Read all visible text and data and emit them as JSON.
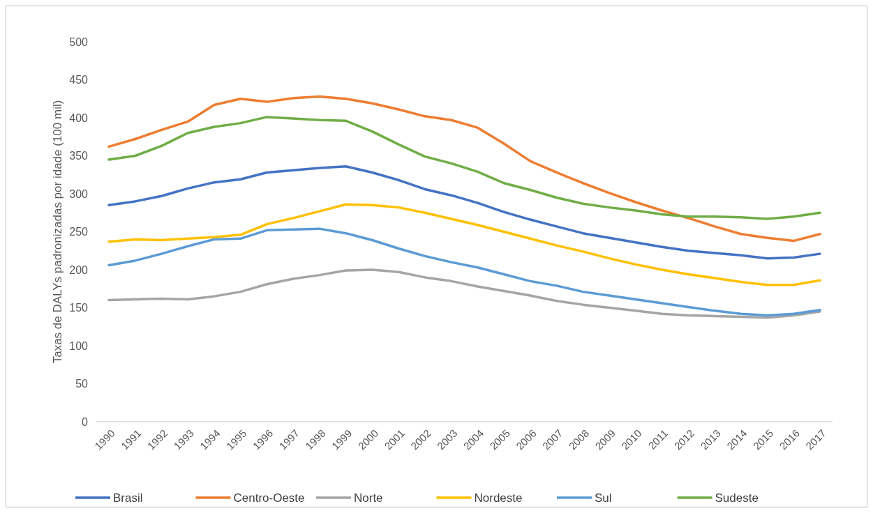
{
  "chart_data": {
    "type": "line",
    "ylabel": "Taxas de DALYs padronizadas por idade (100 mil)",
    "categories": [
      "1990",
      "1991",
      "1992",
      "1993",
      "1994",
      "1995",
      "1996",
      "1997",
      "1998",
      "1999",
      "2000",
      "2001",
      "2002",
      "2003",
      "2004",
      "2005",
      "2006",
      "2007",
      "2008",
      "2009",
      "2010",
      "2011",
      "2012",
      "2013",
      "2014",
      "2015",
      "2016",
      "2017"
    ],
    "ylim": [
      0,
      500
    ],
    "yticks": [
      0,
      50,
      100,
      150,
      200,
      250,
      300,
      350,
      400,
      450,
      500
    ],
    "grid": false,
    "legend": "bottom",
    "marker": "none",
    "line_style": "solid",
    "series": [
      {
        "name": "Brasil",
        "color": "#4472c4",
        "values": [
          285,
          290,
          297,
          307,
          315,
          319,
          328,
          331,
          334,
          336,
          328,
          318,
          306,
          298,
          288,
          276,
          266,
          257,
          248,
          242,
          236,
          230,
          225,
          222,
          219,
          215,
          216,
          221
        ]
      },
      {
        "name": "Centro-Oeste",
        "color": "#ed7d31",
        "values": [
          362,
          372,
          384,
          395,
          417,
          425,
          421,
          426,
          428,
          425,
          419,
          411,
          402,
          397,
          387,
          366,
          343,
          328,
          314,
          301,
          289,
          278,
          268,
          257,
          247,
          242,
          238,
          247
        ]
      },
      {
        "name": "Norte",
        "color": "#a5a5a5",
        "values": [
          160,
          161,
          162,
          161,
          165,
          171,
          181,
          188,
          193,
          199,
          200,
          197,
          190,
          185,
          178,
          172,
          166,
          159,
          154,
          150,
          146,
          142,
          140,
          139,
          138,
          137,
          140,
          145
        ]
      },
      {
        "name": "Nordeste",
        "color": "#ffc000",
        "values": [
          237,
          240,
          239,
          241,
          243,
          246,
          260,
          268,
          277,
          286,
          285,
          282,
          275,
          267,
          259,
          250,
          241,
          232,
          224,
          215,
          207,
          200,
          194,
          189,
          184,
          180,
          180,
          186
        ]
      },
      {
        "name": "Sul",
        "color": "#5b9bd5",
        "values": [
          206,
          212,
          221,
          231,
          240,
          241,
          252,
          253,
          254,
          248,
          239,
          228,
          218,
          210,
          203,
          194,
          185,
          179,
          171,
          166,
          161,
          156,
          151,
          146,
          142,
          140,
          142,
          147
        ]
      },
      {
        "name": "Sudeste",
        "color": "#70ad47",
        "values": [
          345,
          350,
          363,
          380,
          388,
          393,
          401,
          399,
          397,
          396,
          382,
          365,
          349,
          340,
          329,
          314,
          305,
          295,
          287,
          282,
          278,
          273,
          270,
          270,
          269,
          267,
          270,
          275
        ]
      }
    ]
  }
}
